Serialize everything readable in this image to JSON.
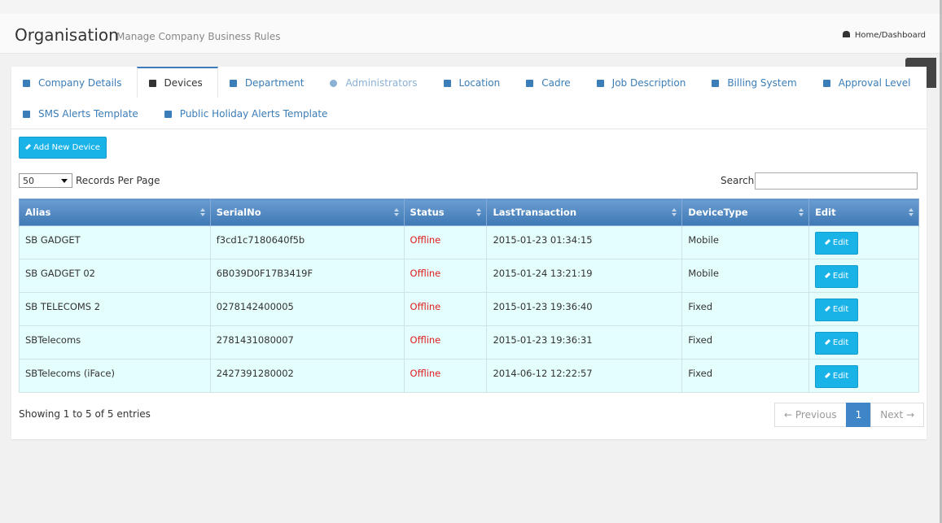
{
  "header": {
    "title": "Organisation",
    "subtitle": "Manage Company Business Rules",
    "breadcrumb": "Home/Dashboard"
  },
  "tabs": [
    "Company Details",
    "Devices",
    "Department",
    "Administrators",
    "Location",
    "Cadre",
    "Job Description",
    "Billing System",
    "Approval Level",
    "SMS Alerts Template",
    "Public Holiday Alerts Template"
  ],
  "add_button": "Add New Device",
  "page_size": "50",
  "page_size_label": "Records Per Page",
  "search_label": "Search:",
  "table": {
    "columns": [
      "Alias",
      "SerialNo",
      "Status",
      "LastTransaction",
      "DeviceType",
      "Edit"
    ],
    "rows": [
      [
        "SB GADGET",
        "f3cd1c7180640f5b",
        "Offline",
        "2015-01-23 01:34:15",
        "Mobile",
        "Edit"
      ],
      [
        "SB GADGET 02",
        "6B039D0F17B3419F",
        "Offline",
        "2015-01-24 13:21:19",
        "Mobile",
        "Edit"
      ],
      [
        "SB TELECOMS 2",
        "0278142400005",
        "Offline",
        "2015-01-23 19:36:40",
        "Fixed",
        "Edit"
      ],
      [
        "SBTelecoms",
        "2781431080007",
        "Offline",
        "2015-01-23 19:36:31",
        "Fixed",
        "Edit"
      ],
      [
        "SBTelecoms (iFace)",
        "2427391280002",
        "Offline",
        "2014-06-12 12:22:57",
        "Fixed",
        "Edit"
      ]
    ]
  },
  "info": "Showing 1 to 5 of 5 entries",
  "pagination": [
    "← Previous",
    "1",
    "Next →"
  ]
}
